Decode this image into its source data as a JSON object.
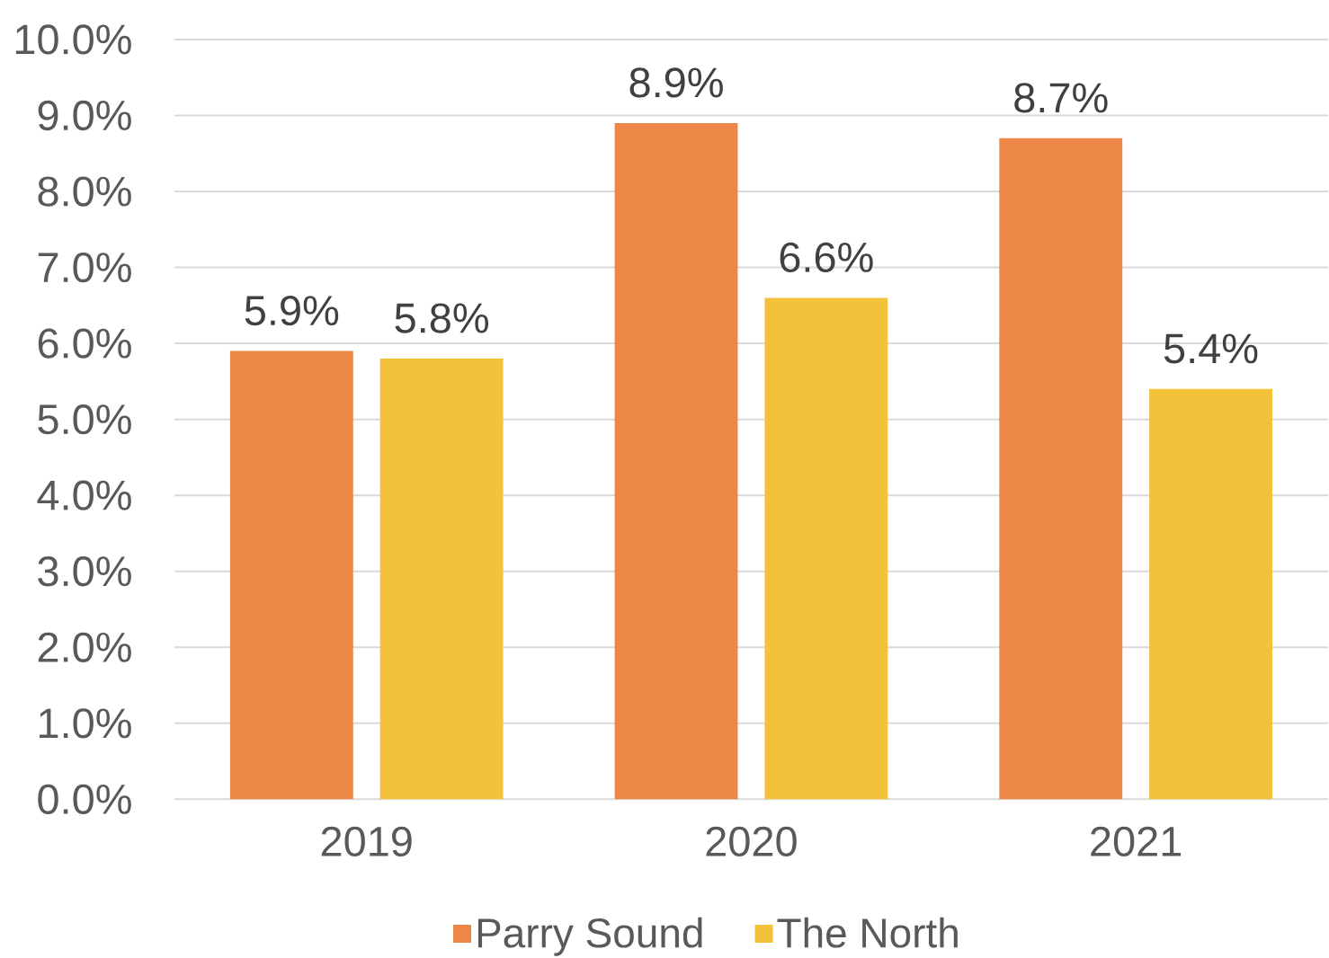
{
  "chart_data": {
    "type": "bar",
    "categories": [
      "2019",
      "2020",
      "2021"
    ],
    "series": [
      {
        "name": "Parry Sound",
        "color": "#ec8748",
        "values": [
          5.9,
          8.9,
          8.7
        ],
        "value_labels": [
          "5.9%",
          "8.9%",
          "8.7%"
        ]
      },
      {
        "name": "The North",
        "color": "#f3c13a",
        "values": [
          5.8,
          6.6,
          5.4
        ],
        "value_labels": [
          "5.8%",
          "6.6%",
          "5.4%"
        ]
      }
    ],
    "ylim": [
      0,
      10
    ],
    "yticks": [
      {
        "value": 0,
        "label": "0.0%"
      },
      {
        "value": 1,
        "label": "1.0%"
      },
      {
        "value": 2,
        "label": "2.0%"
      },
      {
        "value": 3,
        "label": "3.0%"
      },
      {
        "value": 4,
        "label": "4.0%"
      },
      {
        "value": 5,
        "label": "5.0%"
      },
      {
        "value": 6,
        "label": "6.0%"
      },
      {
        "value": 7,
        "label": "7.0%"
      },
      {
        "value": 8,
        "label": "8.0%"
      },
      {
        "value": 9,
        "label": "9.0%"
      },
      {
        "value": 10,
        "label": "10.0%"
      }
    ],
    "grid": "y",
    "legend": "bottom"
  }
}
